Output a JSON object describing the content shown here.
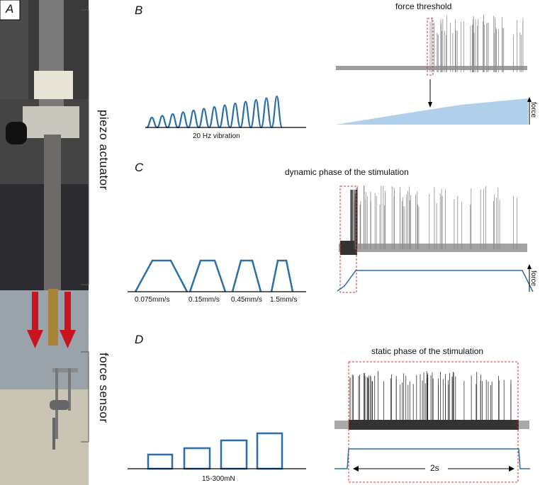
{
  "colors": {
    "blue": "#2a6fa8",
    "lightblue": "#9cc3e6",
    "trace": "#8c8c8c",
    "dark": "#333333",
    "red": "#d63a3a",
    "arrow_red": "#c8141e"
  },
  "panel_a": {
    "letter": "A",
    "label_actuator": "piezo actuator",
    "label_sensor": "force sensor"
  },
  "panel_b": {
    "letter": "B",
    "title": "force threshold",
    "stim_label": "20 Hz vibration",
    "force_label": "force"
  },
  "panel_c": {
    "letter": "C",
    "title": "dynamic phase of the stimulation",
    "speeds": [
      "0.075mm/s",
      "0.15mm/s",
      "0.45mm/s",
      "1.5mm/s"
    ],
    "force_label": "force"
  },
  "panel_d": {
    "letter": "D",
    "title": "static phase of the stimulation",
    "range_label": "15-300mN",
    "duration_label": "2s"
  }
}
